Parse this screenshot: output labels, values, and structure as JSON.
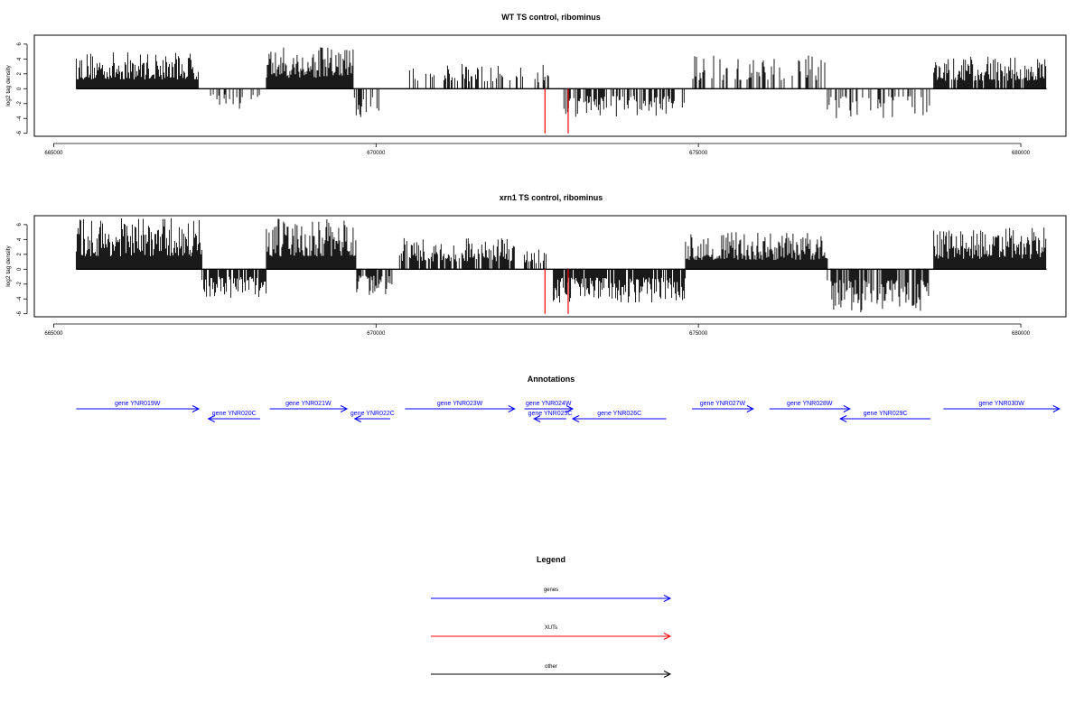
{
  "colors": {
    "gene": "#0000ff",
    "xut": "#ff0000",
    "other": "#000000",
    "signal": "#000000"
  },
  "tracks": [
    {
      "title": "WT TS control, ribominus",
      "ylabel": "log2 tag density"
    },
    {
      "title": "xrn1 TS control, ribominus",
      "ylabel": "log2 tag density"
    }
  ],
  "annotations_title": "Annotations",
  "legend": {
    "title": "Legend",
    "items": [
      {
        "label": "genes",
        "color": "#0000ff"
      },
      {
        "label": "XUTs",
        "color": "#ff0000"
      },
      {
        "label": "other",
        "color": "#000000"
      }
    ]
  },
  "chart_data": [
    {
      "type": "bar",
      "title": "WT TS control, ribominus",
      "xlabel": "",
      "ylabel": "log2 tag density",
      "xlim": [
        664700,
        680700
      ],
      "ylim": [
        -6.4,
        7.2
      ],
      "xticks": [
        665000,
        670000,
        675000,
        680000
      ],
      "yticks": [
        -6,
        -4,
        -2,
        0,
        2,
        4,
        6
      ],
      "grid": false,
      "segments": [
        {
          "start": 665350,
          "end": 667250,
          "sign": 1,
          "peak": 5.0,
          "density": 1.0
        },
        {
          "start": 667350,
          "end": 668300,
          "sign": -1,
          "peak": 3.0,
          "density": 0.35
        },
        {
          "start": 668300,
          "end": 669650,
          "sign": 1,
          "peak": 5.8,
          "density": 1.0
        },
        {
          "start": 669650,
          "end": 670050,
          "sign": -1,
          "peak": 4.2,
          "density": 0.6
        },
        {
          "start": 670450,
          "end": 672300,
          "sign": 1,
          "peak": 3.5,
          "density": 0.3
        },
        {
          "start": 672450,
          "end": 672700,
          "sign": 1,
          "peak": 3.5,
          "density": 0.5
        },
        {
          "start": 672900,
          "end": 674800,
          "sign": -1,
          "peak": 3.8,
          "density": 0.5
        },
        {
          "start": 674900,
          "end": 677000,
          "sign": 1,
          "peak": 4.6,
          "density": 0.45
        },
        {
          "start": 677000,
          "end": 678600,
          "sign": -1,
          "peak": 4.0,
          "density": 0.35
        },
        {
          "start": 678650,
          "end": 680400,
          "sign": 1,
          "peak": 4.3,
          "density": 0.9
        }
      ],
      "highlights": [
        {
          "x": 672620,
          "value": -6.0,
          "color": "#ff0000"
        },
        {
          "x": 672980,
          "value": -6.0,
          "color": "#ff0000"
        }
      ]
    },
    {
      "type": "bar",
      "title": "xrn1 TS control, ribominus",
      "xlabel": "",
      "ylabel": "log2 tag density",
      "xlim": [
        664700,
        680700
      ],
      "ylim": [
        -6.4,
        7.2
      ],
      "xticks": [
        665000,
        670000,
        675000,
        680000
      ],
      "yticks": [
        -6,
        -4,
        -2,
        0,
        2,
        4,
        6
      ],
      "grid": false,
      "segments": [
        {
          "start": 665350,
          "end": 667300,
          "sign": 1,
          "peak": 7.0,
          "density": 1.0
        },
        {
          "start": 667300,
          "end": 668300,
          "sign": -1,
          "peak": 4.0,
          "density": 0.8
        },
        {
          "start": 668300,
          "end": 669700,
          "sign": 1,
          "peak": 6.8,
          "density": 1.0
        },
        {
          "start": 669700,
          "end": 670250,
          "sign": -1,
          "peak": 3.5,
          "density": 0.8
        },
        {
          "start": 670350,
          "end": 672150,
          "sign": 1,
          "peak": 4.2,
          "density": 0.8
        },
        {
          "start": 672300,
          "end": 672750,
          "sign": 1,
          "peak": 3.2,
          "density": 0.5
        },
        {
          "start": 672750,
          "end": 674800,
          "sign": -1,
          "peak": 4.5,
          "density": 0.9
        },
        {
          "start": 674800,
          "end": 677000,
          "sign": 1,
          "peak": 5.0,
          "density": 1.0
        },
        {
          "start": 677000,
          "end": 678600,
          "sign": -1,
          "peak": 5.8,
          "density": 0.8
        },
        {
          "start": 678650,
          "end": 680400,
          "sign": 1,
          "peak": 5.6,
          "density": 1.0
        }
      ],
      "highlights": [
        {
          "x": 672620,
          "value": -6.0,
          "color": "#ff0000"
        },
        {
          "x": 672980,
          "value": -6.0,
          "color": "#ff0000"
        }
      ]
    }
  ],
  "genes": [
    {
      "name": "gene YNR019W",
      "start": 665350,
      "end": 667250,
      "strand": "+"
    },
    {
      "name": "gene YNR020C",
      "start": 667400,
      "end": 668200,
      "strand": "-"
    },
    {
      "name": "gene YNR021W",
      "start": 668350,
      "end": 669550,
      "strand": "+"
    },
    {
      "name": "gene YNR022C",
      "start": 669670,
      "end": 670220,
      "strand": "-"
    },
    {
      "name": "gene YNR023W",
      "start": 670450,
      "end": 672150,
      "strand": "+"
    },
    {
      "name": "gene YNR024W",
      "start": 672300,
      "end": 673050,
      "strand": "+"
    },
    {
      "name": "gene YNR025C",
      "start": 672450,
      "end": 672950,
      "strand": "-"
    },
    {
      "name": "gene YNR026C",
      "start": 673050,
      "end": 674500,
      "strand": "-"
    },
    {
      "name": "gene YNR027W",
      "start": 674900,
      "end": 675850,
      "strand": "+"
    },
    {
      "name": "gene YNR028W",
      "start": 676100,
      "end": 677350,
      "strand": "+"
    },
    {
      "name": "gene YNR029C",
      "start": 677200,
      "end": 678600,
      "strand": "-"
    },
    {
      "name": "gene YNR030W",
      "start": 678800,
      "end": 680600,
      "strand": "+"
    }
  ]
}
